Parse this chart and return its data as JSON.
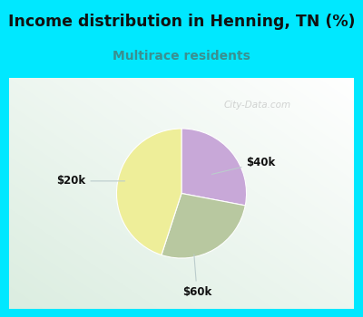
{
  "title": "Income distribution in Henning, TN (%)",
  "subtitle": "Multirace residents",
  "title_color": "#111111",
  "subtitle_color": "#3a9090",
  "title_fontsize": 12.5,
  "subtitle_fontsize": 10,
  "slices": [
    {
      "label": "$40k",
      "value": 28,
      "color": "#c8a8d8"
    },
    {
      "label": "$60k",
      "value": 27,
      "color": "#b8c8a0"
    },
    {
      "label": "$20k",
      "value": 45,
      "color": "#eeee99"
    }
  ],
  "fig_bg": "#00e8ff",
  "chart_bg_left": "#ddeedd",
  "chart_bg_right": "#eef8f8",
  "watermark": "City-Data.com",
  "watermark_color": "#aaaaaa",
  "label_color": "#111111",
  "label_line_color": "#bbcccc",
  "label_fontsize": 8.5
}
